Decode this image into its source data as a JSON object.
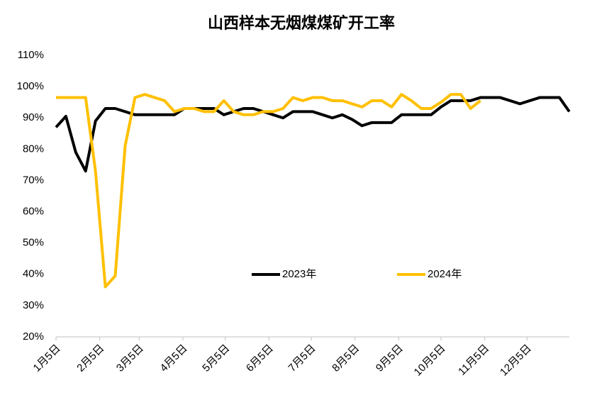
{
  "chart_data": {
    "type": "line",
    "title": "山西样本无烟煤煤矿开工率",
    "x": [
      5,
      12,
      19,
      26,
      33,
      40,
      47,
      54,
      61,
      68,
      75,
      82,
      89,
      96,
      103,
      110,
      117,
      124,
      131,
      138,
      145,
      152,
      159,
      166,
      173,
      180,
      187,
      194,
      201,
      208,
      215,
      222,
      229,
      236,
      243,
      250,
      257,
      264,
      271,
      278,
      285,
      292,
      299,
      306,
      313,
      320,
      327,
      334,
      341,
      348,
      355,
      362,
      369
    ],
    "series": [
      {
        "name": "2023年",
        "color": "#000000",
        "values": [
          87,
          90.5,
          79,
          73,
          89,
          93,
          93,
          92,
          91,
          91,
          91,
          91,
          91,
          93,
          93,
          93,
          93,
          91,
          92,
          93,
          93,
          92,
          91,
          90,
          92,
          92,
          92,
          91,
          90,
          91,
          89.5,
          87.5,
          88.5,
          88.5,
          88.5,
          91,
          91,
          91,
          91,
          93.5,
          95.5,
          95.5,
          95.5,
          96.5,
          96.5,
          96.5,
          95.5,
          94.5,
          95.5,
          96.5,
          96.5,
          96.5,
          92
        ]
      },
      {
        "name": "2024年",
        "color": "#ffc000",
        "values": [
          96.5,
          96.5,
          96.5,
          96.5,
          73,
          36,
          39.5,
          81,
          96.5,
          97.5,
          96.5,
          95.5,
          92,
          93,
          93,
          92,
          92,
          95.5,
          92,
          91,
          91,
          92,
          92,
          93,
          96.5,
          95.5,
          96.5,
          96.5,
          95.5,
          95.5,
          94.5,
          93.5,
          95.5,
          95.5,
          93.5,
          97.5,
          95.5,
          93,
          93,
          95,
          97.5,
          97.5,
          93,
          95.5,
          null,
          null,
          null,
          null,
          null,
          null,
          null,
          null,
          null
        ]
      }
    ],
    "xlim": [
      5,
      369
    ],
    "xticks": [
      {
        "value": 5,
        "label": "1月5日"
      },
      {
        "value": 36,
        "label": "2月5日"
      },
      {
        "value": 64,
        "label": "3月5日"
      },
      {
        "value": 95,
        "label": "4月5日"
      },
      {
        "value": 125,
        "label": "5月5日"
      },
      {
        "value": 156,
        "label": "6月5日"
      },
      {
        "value": 186,
        "label": "7月5日"
      },
      {
        "value": 217,
        "label": "8月5日"
      },
      {
        "value": 248,
        "label": "9月5日"
      },
      {
        "value": 278,
        "label": "10月5日"
      },
      {
        "value": 309,
        "label": "11月5日"
      },
      {
        "value": 339,
        "label": "12月5日"
      }
    ],
    "ylim": [
      20,
      110
    ],
    "yticks": [
      {
        "value": 20,
        "label": "20%"
      },
      {
        "value": 30,
        "label": "30%"
      },
      {
        "value": 40,
        "label": "40%"
      },
      {
        "value": 50,
        "label": "50%"
      },
      {
        "value": 60,
        "label": "60%"
      },
      {
        "value": 70,
        "label": "70%"
      },
      {
        "value": 80,
        "label": "80%"
      },
      {
        "value": 90,
        "label": "90%"
      },
      {
        "value": 100,
        "label": "100%"
      },
      {
        "value": 110,
        "label": "110%"
      }
    ],
    "grid": false,
    "legend": "center"
  }
}
